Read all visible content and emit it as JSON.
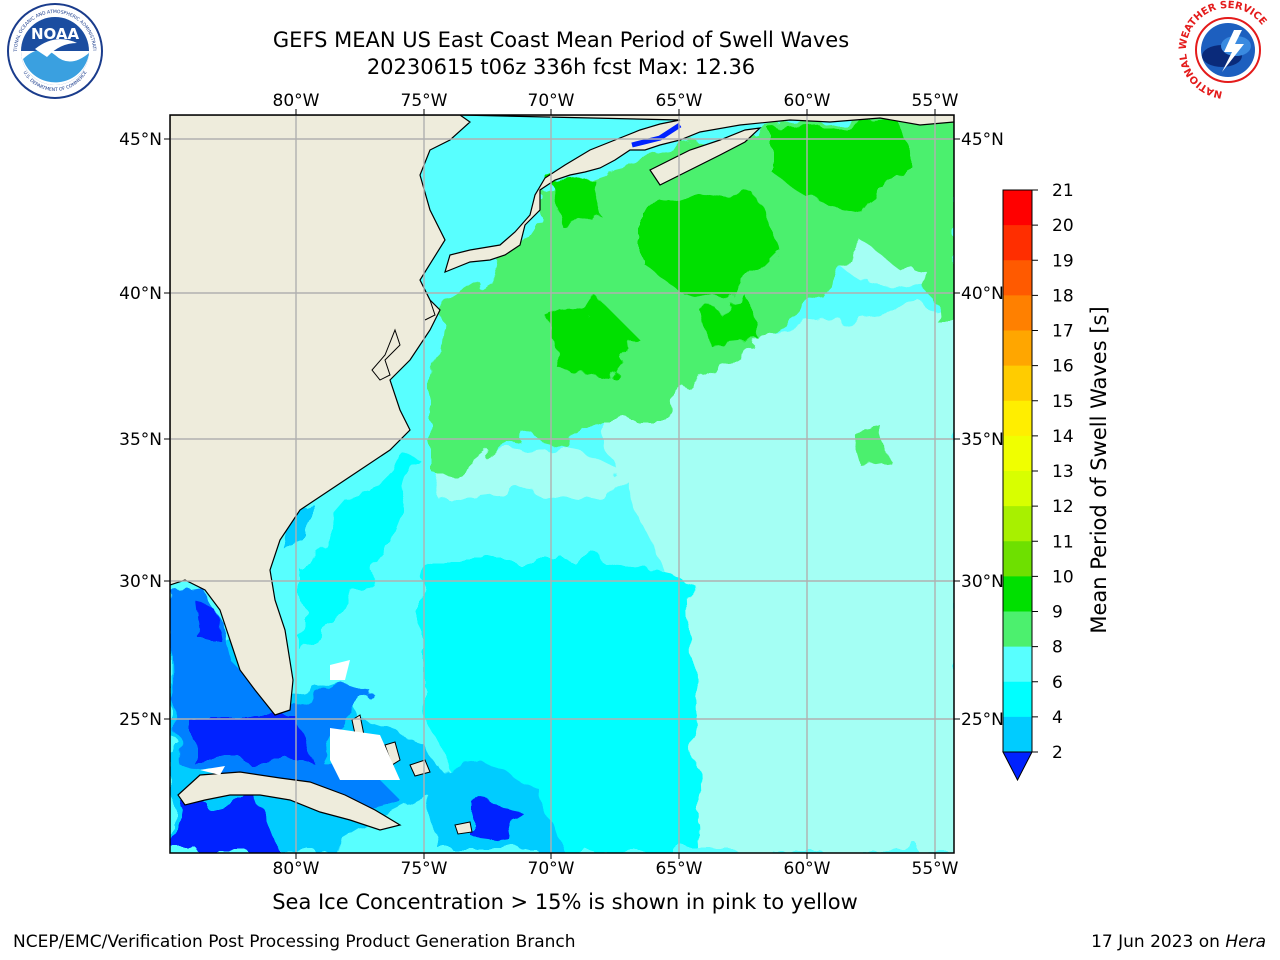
{
  "title_line1": "GEFS MEAN US East Coast Mean Period of Swell Waves",
  "title_line2": "20230615 t06z 336h fcst   Max: 12.36",
  "caption": "Sea Ice Concentration > 15% is shown in pink to yellow",
  "footer_left": "NCEP/EMC/Verification Post Processing Product Generation Branch",
  "footer_right_date": "17 Jun 2023 on ",
  "footer_right_host": "Hera",
  "logos": {
    "noaa": {
      "text": "NOAA",
      "ring_top": "NATIONAL OCEANIC AND ATMOSPHERIC ADMINISTRATION",
      "ring_bottom": "U.S. DEPARTMENT OF COMMERCE"
    },
    "nws": {
      "ring": "NATIONAL WEATHER SERVICE"
    }
  },
  "map": {
    "lon_labels": [
      "80°W",
      "75°W",
      "70°W",
      "65°W",
      "60°W",
      "55°W"
    ],
    "lat_labels": [
      "45°N",
      "40°N",
      "35°N",
      "30°N",
      "25°N"
    ],
    "colors": {
      "land": "#eeecdc",
      "coast": "#000000",
      "grid": "#b0b0b0"
    }
  },
  "colorbar": {
    "label": "Mean Period of Swell Waves [s]",
    "ticks": [
      "21",
      "20",
      "19",
      "18",
      "17",
      "16",
      "15",
      "14",
      "13",
      "12",
      "11",
      "10",
      "9",
      "8",
      "6",
      "4",
      "2"
    ],
    "colors": [
      "#ff0000",
      "#ff2e00",
      "#ff5a00",
      "#ff8000",
      "#ffa600",
      "#ffcc00",
      "#ffee00",
      "#f0ff00",
      "#d8ff00",
      "#a8f000",
      "#6ee000",
      "#00e000",
      "#4cf06e",
      "#a4fff4",
      "#58ffff",
      "#00ffff",
      "#00ccff",
      "#0080ff"
    ],
    "under_color": "#0022ff"
  }
}
